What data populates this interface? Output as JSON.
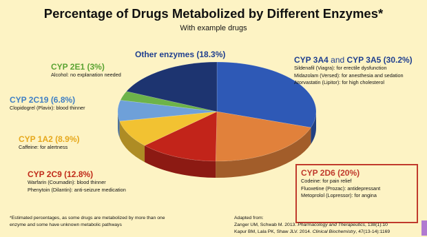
{
  "title": "Percentage of Drugs Metabolized by Different Enzymes*",
  "subtitle": "With example drugs",
  "chart_data": {
    "type": "pie",
    "title": "Percentage of Drugs Metabolized by Different Enzymes*",
    "subtitle": "With example drugs",
    "slices": [
      {
        "label": "CYP 3A4 and CYP 3A5",
        "value": 30.2,
        "color": "#2e59b6"
      },
      {
        "label": "CYP 2D6",
        "value": 20,
        "color": "#e1813b"
      },
      {
        "label": "CYP 2C9",
        "value": 12.8,
        "color": "#c2241a"
      },
      {
        "label": "CYP 1A2",
        "value": 8.9,
        "color": "#f2c232"
      },
      {
        "label": "CYP 2C19",
        "value": 6.8,
        "color": "#6ea0d9"
      },
      {
        "label": "CYP 2E1",
        "value": 3,
        "color": "#6db34a"
      },
      {
        "label": "Other enzymes",
        "value": 18.3,
        "color": "#1d3470"
      }
    ]
  },
  "labels": {
    "cyp3a4": {
      "head_a": "CYP 3A4",
      "head_and": " and ",
      "head_b": "CYP 3A5 (30.2%)",
      "examples": [
        "Sildenafil (Viagra): for erectile dysfunction",
        "Midazolam (Versed): for anesthesia and sedation",
        "Atorvastatin (Lipitor): for high cholesterol"
      ]
    },
    "other": {
      "head": "Other enzymes (18.3%)"
    },
    "cyp2e1": {
      "head": "CYP 2E1 (3%)",
      "examples": [
        "Alcohol: no explanation needed"
      ]
    },
    "cyp2c19": {
      "head": "CYP 2C19 (6.8%)",
      "examples": [
        "Clopidogrel (Plavix): blood thinner"
      ]
    },
    "cyp1a2": {
      "head": "CYP 1A2 (8.9%)",
      "examples": [
        "Caffeine: for alertness"
      ]
    },
    "cyp2c9": {
      "head": "CYP 2C9 (12.8%)",
      "examples": [
        "Warfarin (Coumadin): blood thinner",
        "Phenytoin (Dilantin): anti-seizure medication"
      ]
    },
    "cyp2d6": {
      "head": "CYP 2D6 (20%)",
      "examples": [
        "Codeine: for pain relief",
        "Fluoxetine (Prozac): antidepressant",
        "Metoprolol (Lopressor): for angina"
      ]
    }
  },
  "footnote": {
    "line1": "*Estimated percentages, as some drugs are metabolized by more than one",
    "line2": "enzyme and some have unknown metabolic pathways"
  },
  "source": {
    "heading": "Adapted from:",
    "ref1_authors": "Zanger UM, Schwab M. 2013. ",
    "ref1_journal": "Pharmacology and Therapeutics",
    "ref1_rest": ", 138(1):10",
    "ref2_authors": "Kapur BM, Lala PK, Shaw JLV. 2014. ",
    "ref2_journal": "Clinical Biochemistry",
    "ref2_rest": ", 47(13-14):1169"
  }
}
